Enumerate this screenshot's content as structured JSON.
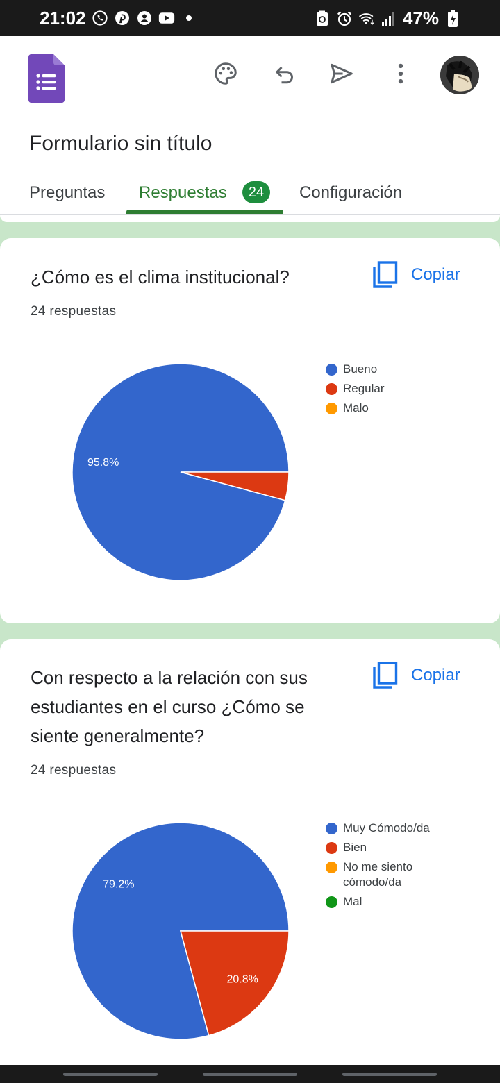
{
  "status_bar": {
    "time": "21:02",
    "battery": "47%",
    "left_icons": [
      "whatsapp-icon",
      "pinterest-icon",
      "account-icon",
      "youtube-icon",
      "dot-icon"
    ],
    "right_icons": [
      "recycle-icon",
      "alarm-icon",
      "wifi-icon",
      "signal-icon",
      "battery-charging-icon"
    ]
  },
  "header": {
    "form_title": "Formulario sin título",
    "icons": [
      "palette-icon",
      "undo-icon",
      "send-icon",
      "more-vert-icon"
    ]
  },
  "tabs": [
    {
      "label": "Preguntas",
      "active": false
    },
    {
      "label": "Respuestas",
      "active": true,
      "badge": "24"
    },
    {
      "label": "Configuración",
      "active": false
    }
  ],
  "colors": {
    "blue": "#3366cc",
    "red": "#dc3912",
    "orange": "#ff9900",
    "green": "#109618",
    "accent_green": "#2e7d32",
    "link_blue": "#1a73e8"
  },
  "questions": [
    {
      "title": "¿Cómo es el clima institucional?",
      "count": "24 respuestas",
      "copy_label": "Copiar",
      "chart_data": {
        "type": "pie",
        "categories": [
          "Bueno",
          "Regular",
          "Malo"
        ],
        "values": [
          95.8,
          4.2,
          0
        ],
        "labels": [
          "95.8%",
          "",
          ""
        ]
      }
    },
    {
      "title": "Con respecto a la relación con sus estudiantes en el curso ¿Cómo se siente generalmente?",
      "count": "24 respuestas",
      "copy_label": "Copiar",
      "chart_data": {
        "type": "pie",
        "categories": [
          "Muy Cómodo/da",
          "Bien",
          "No me siento cómodo/da",
          "Mal"
        ],
        "values": [
          79.2,
          20.8,
          0,
          0
        ],
        "labels": [
          "79.2%",
          "20.8%",
          "",
          ""
        ]
      }
    }
  ]
}
